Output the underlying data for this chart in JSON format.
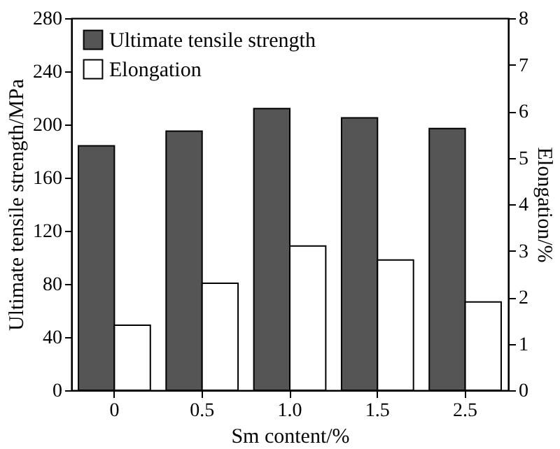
{
  "chart_data": {
    "type": "bar",
    "xlabel": "Sm content/%",
    "ylabel": "Ultimate tensile strength/MPa",
    "y2label": "Elongation/%",
    "categories": [
      "0",
      "0.5",
      "1.0",
      "1.5",
      "2.5"
    ],
    "series": [
      {
        "name": "Ultimate tensile strength",
        "color": "#555555",
        "values": [
          184,
          195,
          212,
          205,
          197
        ]
      },
      {
        "name": "Elongation",
        "color": "#ffffff",
        "values": [
          1.4,
          2.3,
          3.1,
          2.8,
          1.9
        ],
        "axis": "y2"
      }
    ],
    "ylim": [
      0,
      280
    ],
    "yticks": [
      0,
      40,
      80,
      120,
      160,
      200,
      240,
      280
    ],
    "y2lim": [
      0,
      8
    ],
    "y2ticks": [
      0,
      1,
      2,
      3,
      4,
      5,
      6,
      7,
      8
    ],
    "grid": false,
    "legend": "top left"
  }
}
